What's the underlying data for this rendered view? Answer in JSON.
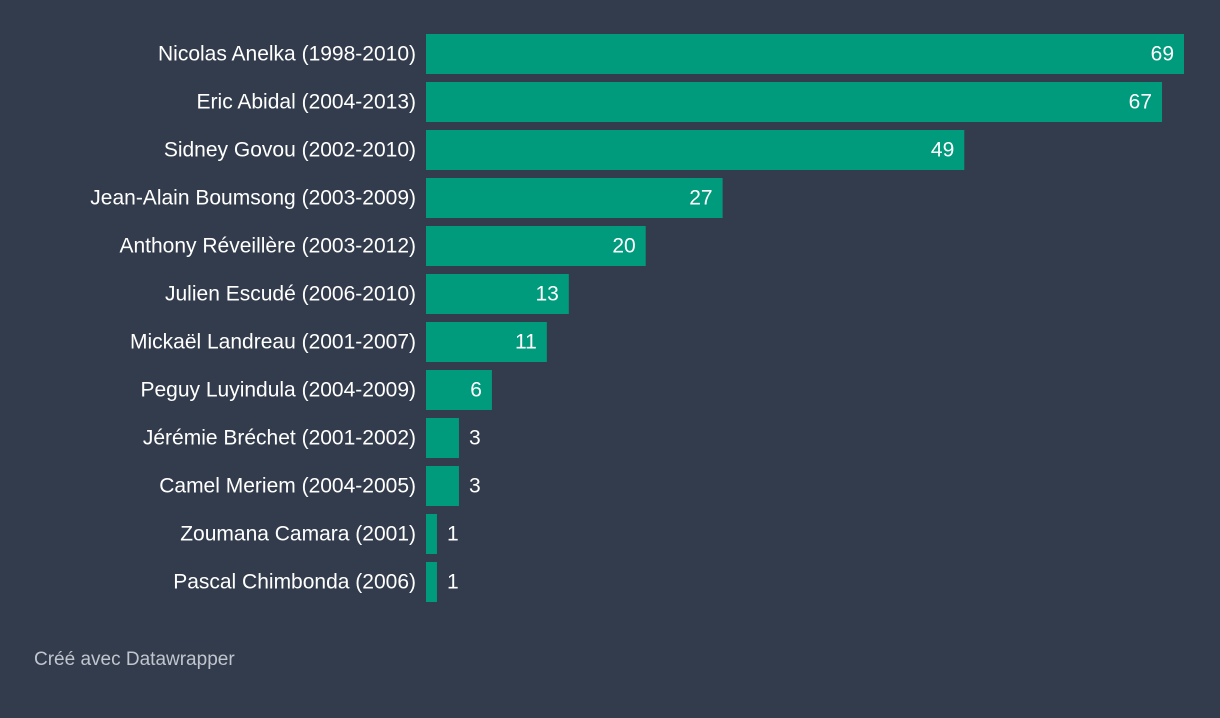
{
  "chart_data": {
    "type": "bar",
    "orientation": "horizontal",
    "categories": [
      "Nicolas Anelka (1998-2010)",
      "Eric Abidal (2004-2013)",
      "Sidney Govou (2002-2010)",
      "Jean-Alain Boumsong (2003-2009)",
      "Anthony Réveillère (2003-2012)",
      "Julien Escudé (2006-2010)",
      "Mickaël Landreau (2001-2007)",
      "Peguy Luyindula (2004-2009)",
      "Jérémie Bréchet (2001-2002)",
      "Camel Meriem (2004-2005)",
      "Zoumana Camara (2001)",
      "Pascal Chimbonda (2006)"
    ],
    "values": [
      69,
      67,
      49,
      27,
      20,
      13,
      11,
      6,
      3,
      3,
      1,
      1
    ],
    "xlim": [
      0,
      69
    ],
    "grid": false,
    "bar_color": "#009a7d",
    "label_color": "#ffffff"
  },
  "footer": {
    "credit": "Créé avec Datawrapper"
  }
}
